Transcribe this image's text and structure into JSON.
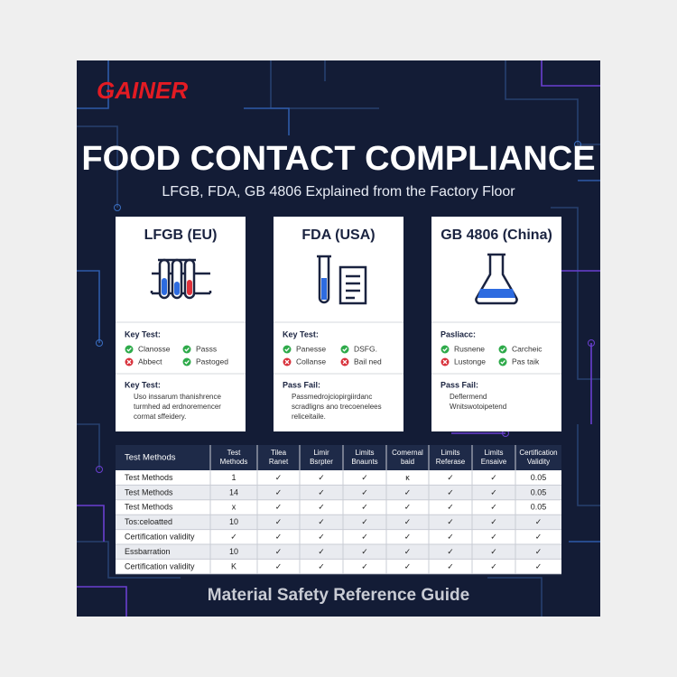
{
  "header": {
    "logo": "GAINER",
    "title": "FOOD CONTACT COMPLIANCE",
    "subtitle": "LFGB, FDA, GB 4806 Explained from the Factory Floor"
  },
  "cards": [
    {
      "title": "LFGB (EU)",
      "section1": "Key Test:",
      "items": [
        {
          "text": "Clanosse",
          "status": "pass"
        },
        {
          "text": "Passs",
          "status": "pass"
        },
        {
          "text": "Abbect",
          "status": "fail"
        },
        {
          "text": "Pastoged",
          "status": "pass"
        }
      ],
      "section2": "Key Test:",
      "lines": [
        "Uso inssarum thanishrence",
        "turmhed ad erdnoremencer",
        "cormat sffeidery."
      ]
    },
    {
      "title": "FDA (USA)",
      "section1": "Key Test:",
      "items": [
        {
          "text": "Panesse",
          "status": "pass"
        },
        {
          "text": "DSFG.",
          "status": "pass"
        },
        {
          "text": "Collanse",
          "status": "fail"
        },
        {
          "text": "Bail ned",
          "status": "fail"
        }
      ],
      "section2": "Pass Fail:",
      "lines": [
        "Passmedrojciopirgiirdanc",
        "scradligns ano trecoenelees",
        "reliceitaile."
      ]
    },
    {
      "title": "GB 4806 (China)",
      "section1": "Pasliacc:",
      "items": [
        {
          "text": "Rusnene",
          "status": "pass"
        },
        {
          "text": "Carcheic",
          "status": "pass"
        },
        {
          "text": "Lustonge",
          "status": "fail"
        },
        {
          "text": "Pas taik",
          "status": "pass"
        }
      ],
      "section2": "Pass Fail:",
      "lines": [
        "Deflermend",
        "Wnitswotoipetend"
      ]
    }
  ],
  "table": {
    "header": [
      [
        "Test Methods"
      ],
      [
        "Test",
        "Methods"
      ],
      [
        "Tilea",
        "Ranet"
      ],
      [
        "Limir",
        "Bsrpter"
      ],
      [
        "Limits",
        "Bnaunts"
      ],
      [
        "Comernal",
        "baid"
      ],
      [
        "Limits",
        "Referase"
      ],
      [
        "Limits",
        "Ensaive"
      ],
      [
        "Certification",
        "Validity"
      ]
    ],
    "rows": [
      [
        "Test Methods",
        "1",
        "✓",
        "✓",
        "✓",
        "ĸ",
        "✓",
        "✓",
        "0.05"
      ],
      [
        "Test Methods",
        "14",
        "✓",
        "✓",
        "✓",
        "✓",
        "✓",
        "✓",
        "0.05"
      ],
      [
        "Test Methods",
        "x",
        "✓",
        "✓",
        "✓",
        "✓",
        "✓",
        "✓",
        "0.05"
      ],
      [
        "Tos:celoatted",
        "10",
        "✓",
        "✓",
        "✓",
        "✓",
        "✓",
        "✓",
        "✓"
      ],
      [
        "Certification validity",
        "✓",
        "✓",
        "✓",
        "✓",
        "✓",
        "✓",
        "✓",
        "✓"
      ],
      [
        "Essbarration",
        "10",
        "✓",
        "✓",
        "✓",
        "✓",
        "✓",
        "✓",
        "✓"
      ],
      [
        "Certification validity",
        "K",
        "✓",
        "✓",
        "✓",
        "✓",
        "✓",
        "✓",
        "✓"
      ]
    ]
  },
  "footer": "Material Safety Reference Guide"
}
